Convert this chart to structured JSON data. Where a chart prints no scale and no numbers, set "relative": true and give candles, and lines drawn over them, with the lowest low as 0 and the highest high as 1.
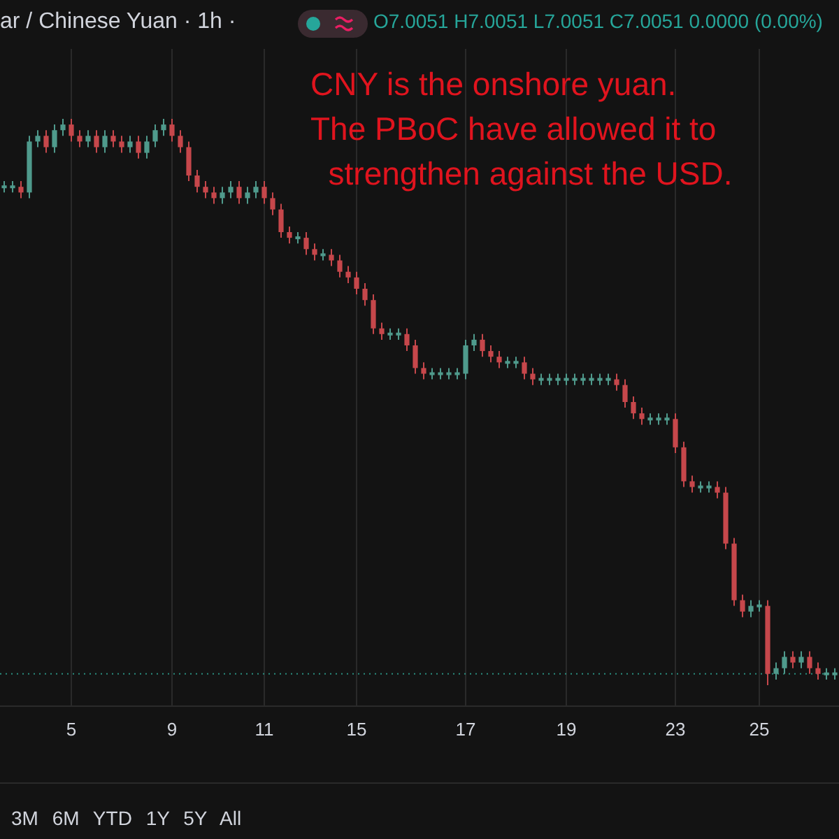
{
  "chart_data": {
    "type": "candlestick",
    "title": "ar / Chinese Yuan · 1h ·",
    "subtitle": "O7.0051 H7.0051 L7.0051 C7.0051 0.0000 (0.00%)",
    "relative": true,
    "grid": "x",
    "categories": [
      null,
      null,
      null,
      null,
      null,
      null,
      null,
      null,
      "5",
      null,
      null,
      null,
      null,
      null,
      null,
      null,
      null,
      null,
      null,
      null,
      "9",
      null,
      null,
      null,
      null,
      null,
      null,
      null,
      null,
      null,
      null,
      "11",
      null,
      null,
      null,
      null,
      null,
      null,
      null,
      null,
      null,
      null,
      "15",
      null,
      null,
      null,
      null,
      null,
      null,
      null,
      null,
      null,
      null,
      null,
      null,
      "17",
      null,
      null,
      null,
      null,
      null,
      null,
      null,
      null,
      null,
      null,
      null,
      "19",
      null,
      null,
      null,
      null,
      null,
      null,
      null,
      null,
      null,
      null,
      null,
      null,
      "23",
      null,
      null,
      null,
      null,
      null,
      null,
      null,
      null,
      null,
      "25",
      null,
      null,
      null,
      null,
      null,
      null,
      null,
      null,
      null
    ],
    "ohlc": [
      [
        0.88,
        0.89,
        0.87,
        0.88
      ],
      [
        0.88,
        0.89,
        0.87,
        0.88
      ],
      [
        0.88,
        0.89,
        0.86,
        0.87
      ],
      [
        0.87,
        0.97,
        0.86,
        0.96
      ],
      [
        0.96,
        0.98,
        0.95,
        0.97
      ],
      [
        0.97,
        0.98,
        0.94,
        0.95
      ],
      [
        0.95,
        0.99,
        0.94,
        0.98
      ],
      [
        0.98,
        1.0,
        0.97,
        0.99
      ],
      [
        0.99,
        1.0,
        0.96,
        0.97
      ],
      [
        0.97,
        0.98,
        0.95,
        0.96
      ],
      [
        0.96,
        0.98,
        0.95,
        0.97
      ],
      [
        0.97,
        0.98,
        0.94,
        0.95
      ],
      [
        0.95,
        0.98,
        0.94,
        0.97
      ],
      [
        0.97,
        0.98,
        0.95,
        0.96
      ],
      [
        0.96,
        0.97,
        0.94,
        0.95
      ],
      [
        0.95,
        0.97,
        0.94,
        0.96
      ],
      [
        0.96,
        0.97,
        0.93,
        0.94
      ],
      [
        0.94,
        0.97,
        0.93,
        0.96
      ],
      [
        0.96,
        0.99,
        0.95,
        0.98
      ],
      [
        0.98,
        1.0,
        0.97,
        0.99
      ],
      [
        0.99,
        1.0,
        0.96,
        0.97
      ],
      [
        0.97,
        0.98,
        0.94,
        0.95
      ],
      [
        0.95,
        0.96,
        0.89,
        0.9
      ],
      [
        0.9,
        0.91,
        0.87,
        0.88
      ],
      [
        0.88,
        0.89,
        0.86,
        0.87
      ],
      [
        0.87,
        0.88,
        0.85,
        0.86
      ],
      [
        0.86,
        0.88,
        0.85,
        0.87
      ],
      [
        0.87,
        0.89,
        0.86,
        0.88
      ],
      [
        0.88,
        0.89,
        0.85,
        0.86
      ],
      [
        0.86,
        0.88,
        0.85,
        0.87
      ],
      [
        0.87,
        0.89,
        0.86,
        0.88
      ],
      [
        0.88,
        0.89,
        0.85,
        0.86
      ],
      [
        0.86,
        0.87,
        0.83,
        0.84
      ],
      [
        0.84,
        0.85,
        0.79,
        0.8
      ],
      [
        0.8,
        0.81,
        0.78,
        0.79
      ],
      [
        0.79,
        0.8,
        0.78,
        0.79
      ],
      [
        0.79,
        0.8,
        0.76,
        0.77
      ],
      [
        0.77,
        0.78,
        0.75,
        0.76
      ],
      [
        0.76,
        0.77,
        0.75,
        0.76
      ],
      [
        0.76,
        0.77,
        0.74,
        0.75
      ],
      [
        0.75,
        0.76,
        0.72,
        0.73
      ],
      [
        0.73,
        0.74,
        0.71,
        0.72
      ],
      [
        0.72,
        0.73,
        0.69,
        0.7
      ],
      [
        0.7,
        0.71,
        0.67,
        0.68
      ],
      [
        0.68,
        0.69,
        0.62,
        0.63
      ],
      [
        0.63,
        0.64,
        0.61,
        0.62
      ],
      [
        0.62,
        0.63,
        0.61,
        0.62
      ],
      [
        0.62,
        0.63,
        0.61,
        0.62
      ],
      [
        0.62,
        0.63,
        0.59,
        0.6
      ],
      [
        0.6,
        0.61,
        0.55,
        0.56
      ],
      [
        0.56,
        0.57,
        0.54,
        0.55
      ],
      [
        0.55,
        0.56,
        0.54,
        0.55
      ],
      [
        0.55,
        0.56,
        0.54,
        0.55
      ],
      [
        0.55,
        0.56,
        0.54,
        0.55
      ],
      [
        0.55,
        0.56,
        0.54,
        0.55
      ],
      [
        0.55,
        0.61,
        0.54,
        0.6
      ],
      [
        0.6,
        0.62,
        0.59,
        0.61
      ],
      [
        0.61,
        0.62,
        0.58,
        0.59
      ],
      [
        0.59,
        0.6,
        0.57,
        0.58
      ],
      [
        0.58,
        0.59,
        0.56,
        0.57
      ],
      [
        0.57,
        0.58,
        0.56,
        0.57
      ],
      [
        0.57,
        0.58,
        0.56,
        0.57
      ],
      [
        0.57,
        0.58,
        0.54,
        0.55
      ],
      [
        0.55,
        0.56,
        0.53,
        0.54
      ],
      [
        0.54,
        0.55,
        0.53,
        0.54
      ],
      [
        0.54,
        0.55,
        0.53,
        0.54
      ],
      [
        0.54,
        0.55,
        0.53,
        0.54
      ],
      [
        0.54,
        0.55,
        0.53,
        0.54
      ],
      [
        0.54,
        0.55,
        0.53,
        0.54
      ],
      [
        0.54,
        0.55,
        0.53,
        0.54
      ],
      [
        0.54,
        0.55,
        0.53,
        0.54
      ],
      [
        0.54,
        0.55,
        0.53,
        0.54
      ],
      [
        0.54,
        0.55,
        0.53,
        0.54
      ],
      [
        0.54,
        0.55,
        0.52,
        0.53
      ],
      [
        0.53,
        0.54,
        0.49,
        0.5
      ],
      [
        0.5,
        0.51,
        0.47,
        0.48
      ],
      [
        0.48,
        0.49,
        0.46,
        0.47
      ],
      [
        0.47,
        0.48,
        0.46,
        0.47
      ],
      [
        0.47,
        0.48,
        0.46,
        0.47
      ],
      [
        0.47,
        0.48,
        0.46,
        0.47
      ],
      [
        0.47,
        0.48,
        0.41,
        0.42
      ],
      [
        0.42,
        0.43,
        0.35,
        0.36
      ],
      [
        0.36,
        0.37,
        0.34,
        0.35
      ],
      [
        0.35,
        0.36,
        0.34,
        0.35
      ],
      [
        0.35,
        0.36,
        0.34,
        0.35
      ],
      [
        0.35,
        0.36,
        0.33,
        0.34
      ],
      [
        0.34,
        0.35,
        0.24,
        0.25
      ],
      [
        0.25,
        0.26,
        0.14,
        0.15
      ],
      [
        0.15,
        0.16,
        0.12,
        0.13
      ],
      [
        0.13,
        0.15,
        0.12,
        0.14
      ],
      [
        0.14,
        0.15,
        0.13,
        0.14
      ],
      [
        0.14,
        0.15,
        0.0,
        0.02
      ],
      [
        0.02,
        0.04,
        0.01,
        0.03
      ],
      [
        0.03,
        0.06,
        0.02,
        0.05
      ],
      [
        0.05,
        0.06,
        0.03,
        0.04
      ],
      [
        0.04,
        0.06,
        0.03,
        0.05
      ],
      [
        0.05,
        0.06,
        0.02,
        0.03
      ],
      [
        0.03,
        0.04,
        0.01,
        0.02
      ],
      [
        0.02,
        0.03,
        0.01,
        0.02
      ],
      [
        0.02,
        0.03,
        0.01,
        0.02
      ]
    ],
    "ref_lines": [
      {
        "axis": "y",
        "value": 0.02,
        "color": "#2a8c7e",
        "line_style": "dotted"
      }
    ],
    "annotations": [
      "CNY is the onshore yuan.\nThe PBoC have allowed it to\n  strengthen against the USD.",
      "3M 6M YTD 1Y 5Y All"
    ]
  }
}
